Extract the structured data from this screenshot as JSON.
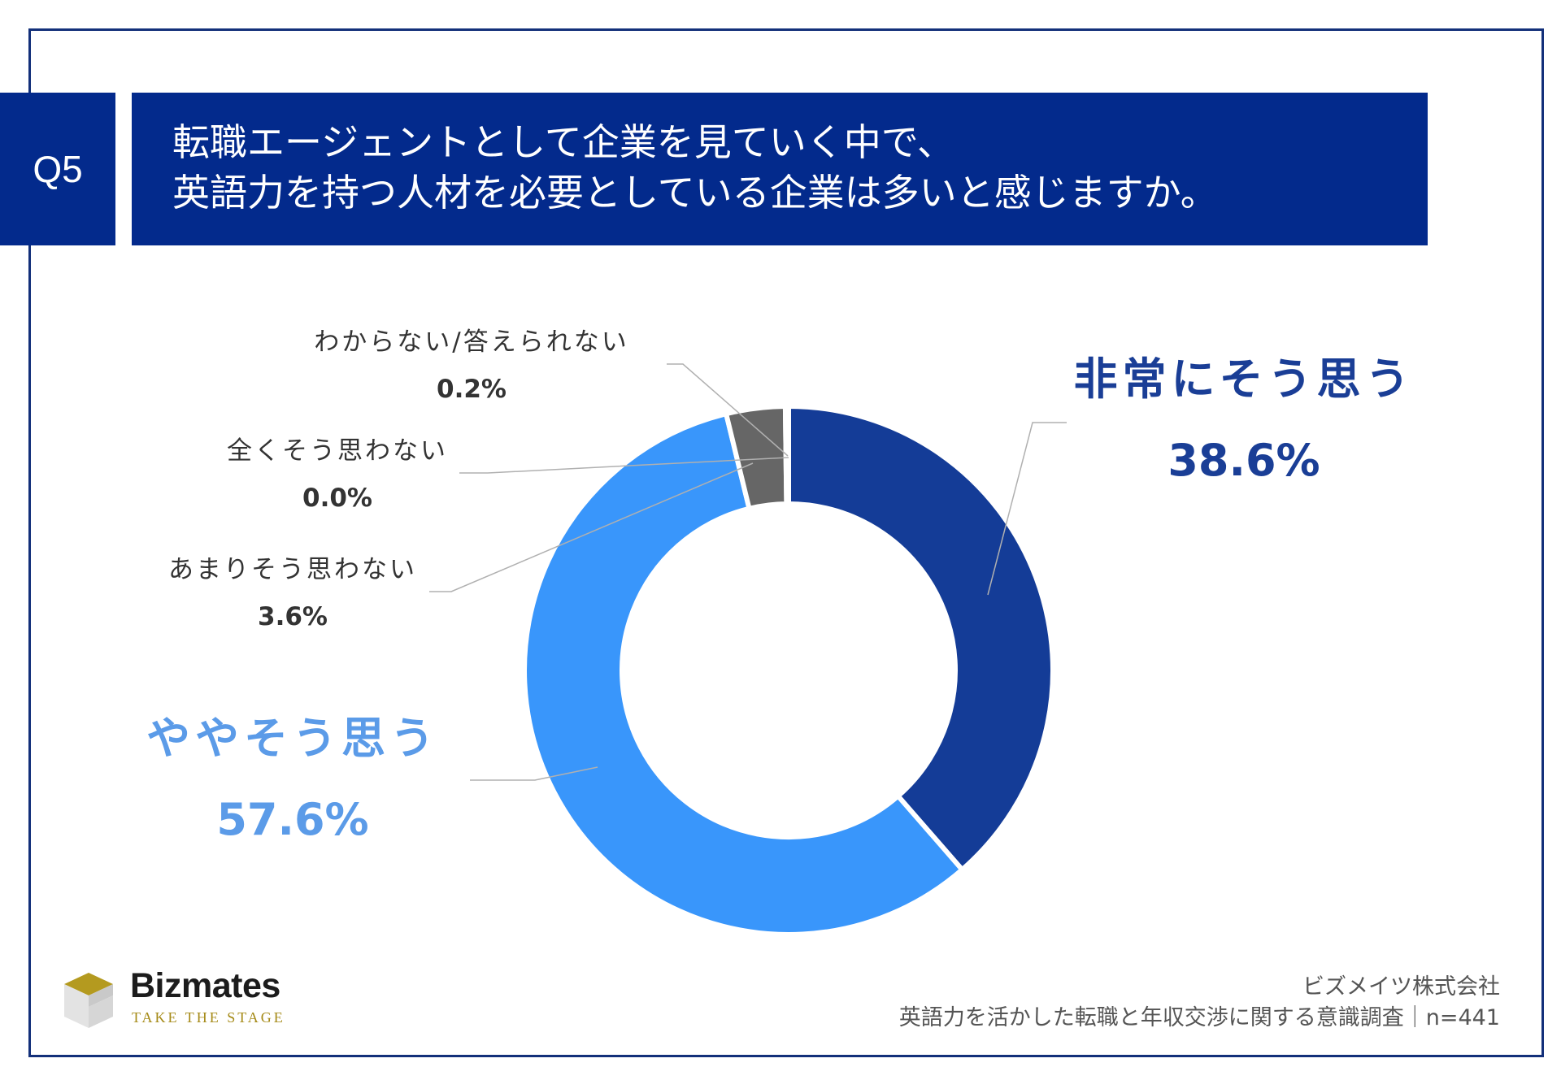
{
  "question": {
    "badge": "Q5",
    "line1": "転職エージェントとして企業を見ていく中で、",
    "line2": "英語力を持つ人材を必要としている企業は多いと感じますか。"
  },
  "chart_data": {
    "type": "pie",
    "variant": "donut",
    "title": "転職エージェントとして企業を見ていく中で、英語力を持つ人材を必要としている企業は多いと感じますか。",
    "slices": [
      {
        "label": "非常にそう思う",
        "value": 38.6,
        "value_label": "38.6%",
        "color": "#143c97"
      },
      {
        "label": "ややそう思う",
        "value": 57.6,
        "value_label": "57.6%",
        "color": "#3996fb"
      },
      {
        "label": "あまりそう思わない",
        "value": 3.6,
        "value_label": "3.6%",
        "color": "#666666"
      },
      {
        "label": "全くそう思わない",
        "value": 0.0,
        "value_label": "0.0%",
        "color": "#999999"
      },
      {
        "label": "わからない/答えられない",
        "value": 0.2,
        "value_label": "0.2%",
        "color": "#bfbfbf"
      }
    ]
  },
  "brand": {
    "name": "Bizmates",
    "tagline": "TAKE THE STAGE"
  },
  "footer": {
    "company": "ビズメイツ株式会社",
    "survey": "英語力を活かした転職と年収交渉に関する意識調査｜n=441"
  }
}
